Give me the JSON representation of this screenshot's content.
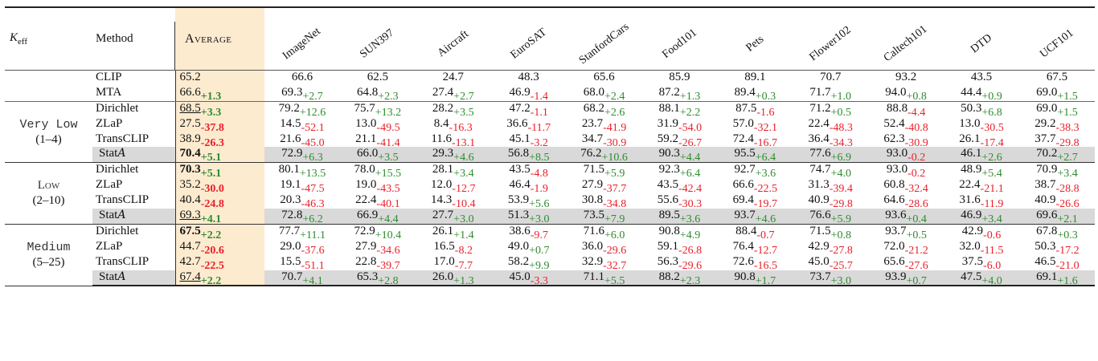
{
  "table": {
    "headers": {
      "k_eff": "K",
      "k_eff_sub": "eff",
      "method": "Method",
      "average": "Average",
      "datasets": [
        "ImageNet",
        "SUN397",
        "Aircraft",
        "EuroSAT",
        "StanfordCars",
        "Food101",
        "Pets",
        "Flower102",
        "Caltech101",
        "DTD",
        "UCF101"
      ]
    },
    "colors": {
      "average_column_bg": "#fdebd0",
      "stat_row_bg": "#d9d9d9",
      "positive_delta": "#2e8b2e",
      "negative_delta": "#e8202a"
    },
    "baseline_rows": [
      {
        "method": "CLIP",
        "average": {
          "v": "65.2",
          "d": ""
        },
        "cells": [
          {
            "v": "66.6",
            "d": ""
          },
          {
            "v": "62.5",
            "d": ""
          },
          {
            "v": "24.7",
            "d": ""
          },
          {
            "v": "48.3",
            "d": ""
          },
          {
            "v": "65.6",
            "d": ""
          },
          {
            "v": "85.9",
            "d": ""
          },
          {
            "v": "89.1",
            "d": ""
          },
          {
            "v": "70.7",
            "d": ""
          },
          {
            "v": "93.2",
            "d": ""
          },
          {
            "v": "43.5",
            "d": ""
          },
          {
            "v": "67.5",
            "d": ""
          }
        ]
      },
      {
        "method": "MTA",
        "average": {
          "v": "66.6",
          "d": "+1.3"
        },
        "cells": [
          {
            "v": "69.3",
            "d": "+2.7"
          },
          {
            "v": "64.8",
            "d": "+2.3"
          },
          {
            "v": "27.4",
            "d": "+2.7"
          },
          {
            "v": "46.9",
            "d": "-1.4"
          },
          {
            "v": "68.0",
            "d": "+2.4"
          },
          {
            "v": "87.2",
            "d": "+1.3"
          },
          {
            "v": "89.4",
            "d": "+0.3"
          },
          {
            "v": "71.7",
            "d": "+1.0"
          },
          {
            "v": "94.0",
            "d": "+0.8"
          },
          {
            "v": "44.4",
            "d": "+0.9"
          },
          {
            "v": "69.0",
            "d": "+1.5"
          }
        ]
      }
    ],
    "groups": [
      {
        "label": "Very Low",
        "range": "(1–4)",
        "label_style": "normal",
        "rows": [
          {
            "method": "Dirichlet",
            "average": {
              "v": "68.5",
              "d": "+3.3",
              "style": "underline"
            },
            "cells": [
              {
                "v": "79.2",
                "d": "+12.6"
              },
              {
                "v": "75.7",
                "d": "+13.2"
              },
              {
                "v": "28.2",
                "d": "+3.5"
              },
              {
                "v": "47.2",
                "d": "-1.1"
              },
              {
                "v": "68.2",
                "d": "+2.6"
              },
              {
                "v": "88.1",
                "d": "+2.2"
              },
              {
                "v": "87.5",
                "d": "-1.6"
              },
              {
                "v": "71.2",
                "d": "+0.5"
              },
              {
                "v": "88.8",
                "d": "-4.4"
              },
              {
                "v": "50.3",
                "d": "+6.8"
              },
              {
                "v": "69.0",
                "d": "+1.5"
              }
            ]
          },
          {
            "method": "ZLaP",
            "average": {
              "v": "27.5",
              "d": "-37.8"
            },
            "cells": [
              {
                "v": "14.5",
                "d": "-52.1"
              },
              {
                "v": "13.0",
                "d": "-49.5"
              },
              {
                "v": "8.4",
                "d": "-16.3"
              },
              {
                "v": "36.6",
                "d": "-11.7"
              },
              {
                "v": "23.7",
                "d": "-41.9"
              },
              {
                "v": "31.9",
                "d": "-54.0"
              },
              {
                "v": "57.0",
                "d": "-32.1"
              },
              {
                "v": "22.4",
                "d": "-48.3"
              },
              {
                "v": "52.4",
                "d": "-40.8"
              },
              {
                "v": "13.0",
                "d": "-30.5"
              },
              {
                "v": "29.2",
                "d": "-38.3"
              }
            ]
          },
          {
            "method": "TransCLIP",
            "average": {
              "v": "38.9",
              "d": "-26.3"
            },
            "cells": [
              {
                "v": "21.6",
                "d": "-45.0"
              },
              {
                "v": "21.1",
                "d": "-41.4"
              },
              {
                "v": "11.6",
                "d": "-13.1"
              },
              {
                "v": "45.1",
                "d": "-3.2"
              },
              {
                "v": "34.7",
                "d": "-30.9"
              },
              {
                "v": "59.2",
                "d": "-26.7"
              },
              {
                "v": "72.4",
                "d": "-16.7"
              },
              {
                "v": "36.4",
                "d": "-34.3"
              },
              {
                "v": "62.3",
                "d": "-30.9"
              },
              {
                "v": "26.1",
                "d": "-17.4"
              },
              {
                "v": "37.7",
                "d": "-29.8"
              }
            ]
          },
          {
            "method": "Stat",
            "method_suffix": "A",
            "highlight": true,
            "average": {
              "v": "70.4",
              "d": "+5.1",
              "style": "bold"
            },
            "cells": [
              {
                "v": "72.9",
                "d": "+6.3"
              },
              {
                "v": "66.0",
                "d": "+3.5"
              },
              {
                "v": "29.3",
                "d": "+4.6"
              },
              {
                "v": "56.8",
                "d": "+8.5"
              },
              {
                "v": "76.2",
                "d": "+10.6"
              },
              {
                "v": "90.3",
                "d": "+4.4"
              },
              {
                "v": "95.5",
                "d": "+6.4"
              },
              {
                "v": "77.6",
                "d": "+6.9"
              },
              {
                "v": "93.0",
                "d": "-0.2"
              },
              {
                "v": "46.1",
                "d": "+2.6"
              },
              {
                "v": "70.2",
                "d": "+2.7"
              }
            ]
          }
        ]
      },
      {
        "label": "Low",
        "range": "(2–10)",
        "label_style": "smallcaps",
        "rows": [
          {
            "method": "Dirichlet",
            "average": {
              "v": "70.3",
              "d": "+5.1",
              "style": "bold"
            },
            "cells": [
              {
                "v": "80.1",
                "d": "+13.5"
              },
              {
                "v": "78.0",
                "d": "+15.5"
              },
              {
                "v": "28.1",
                "d": "+3.4"
              },
              {
                "v": "43.5",
                "d": "-4.8"
              },
              {
                "v": "71.5",
                "d": "+5.9"
              },
              {
                "v": "92.3",
                "d": "+6.4"
              },
              {
                "v": "92.7",
                "d": "+3.6"
              },
              {
                "v": "74.7",
                "d": "+4.0"
              },
              {
                "v": "93.0",
                "d": "-0.2"
              },
              {
                "v": "48.9",
                "d": "+5.4"
              },
              {
                "v": "70.9",
                "d": "+3.4"
              }
            ]
          },
          {
            "method": "ZLaP",
            "average": {
              "v": "35.2",
              "d": "-30.0"
            },
            "cells": [
              {
                "v": "19.1",
                "d": "-47.5"
              },
              {
                "v": "19.0",
                "d": "-43.5"
              },
              {
                "v": "12.0",
                "d": "-12.7"
              },
              {
                "v": "46.4",
                "d": "-1.9"
              },
              {
                "v": "27.9",
                "d": "-37.7"
              },
              {
                "v": "43.5",
                "d": "-42.4"
              },
              {
                "v": "66.6",
                "d": "-22.5"
              },
              {
                "v": "31.3",
                "d": "-39.4"
              },
              {
                "v": "60.8",
                "d": "-32.4"
              },
              {
                "v": "22.4",
                "d": "-21.1"
              },
              {
                "v": "38.7",
                "d": "-28.8"
              }
            ]
          },
          {
            "method": "TransCLIP",
            "average": {
              "v": "40.4",
              "d": "-24.8"
            },
            "cells": [
              {
                "v": "20.3",
                "d": "-46.3"
              },
              {
                "v": "22.4",
                "d": "-40.1"
              },
              {
                "v": "14.3",
                "d": "-10.4"
              },
              {
                "v": "53.9",
                "d": "+5.6"
              },
              {
                "v": "30.8",
                "d": "-34.8"
              },
              {
                "v": "55.6",
                "d": "-30.3"
              },
              {
                "v": "69.4",
                "d": "-19.7"
              },
              {
                "v": "40.9",
                "d": "-29.8"
              },
              {
                "v": "64.6",
                "d": "-28.6"
              },
              {
                "v": "31.6",
                "d": "-11.9"
              },
              {
                "v": "40.9",
                "d": "-26.6"
              }
            ]
          },
          {
            "method": "Stat",
            "method_suffix": "A",
            "highlight": true,
            "average": {
              "v": "69.3",
              "d": "+4.1",
              "style": "underline"
            },
            "cells": [
              {
                "v": "72.8",
                "d": "+6.2"
              },
              {
                "v": "66.9",
                "d": "+4.4"
              },
              {
                "v": "27.7",
                "d": "+3.0"
              },
              {
                "v": "51.3",
                "d": "+3.0"
              },
              {
                "v": "73.5",
                "d": "+7.9"
              },
              {
                "v": "89.5",
                "d": "+3.6"
              },
              {
                "v": "93.7",
                "d": "+4.6"
              },
              {
                "v": "76.6",
                "d": "+5.9"
              },
              {
                "v": "93.6",
                "d": "+0.4"
              },
              {
                "v": "46.9",
                "d": "+3.4"
              },
              {
                "v": "69.6",
                "d": "+2.1"
              }
            ]
          }
        ]
      },
      {
        "label": "Medium",
        "range": "(5–25)",
        "label_style": "normal",
        "rows": [
          {
            "method": "Dirichlet",
            "average": {
              "v": "67.5",
              "d": "+2.2",
              "style": "bold"
            },
            "cells": [
              {
                "v": "77.7",
                "d": "+11.1"
              },
              {
                "v": "72.9",
                "d": "+10.4"
              },
              {
                "v": "26.1",
                "d": "+1.4"
              },
              {
                "v": "38.6",
                "d": "-9.7"
              },
              {
                "v": "71.6",
                "d": "+6.0"
              },
              {
                "v": "90.8",
                "d": "+4.9"
              },
              {
                "v": "88.4",
                "d": "-0.7"
              },
              {
                "v": "71.5",
                "d": "+0.8"
              },
              {
                "v": "93.7",
                "d": "+0.5"
              },
              {
                "v": "42.9",
                "d": "-0.6"
              },
              {
                "v": "67.8",
                "d": "+0.3"
              }
            ]
          },
          {
            "method": "ZLaP",
            "average": {
              "v": "44.7",
              "d": "-20.6"
            },
            "cells": [
              {
                "v": "29.0",
                "d": "-37.6"
              },
              {
                "v": "27.9",
                "d": "-34.6"
              },
              {
                "v": "16.5",
                "d": "-8.2"
              },
              {
                "v": "49.0",
                "d": "+0.7"
              },
              {
                "v": "36.0",
                "d": "-29.6"
              },
              {
                "v": "59.1",
                "d": "-26.8"
              },
              {
                "v": "76.4",
                "d": "-12.7"
              },
              {
                "v": "42.9",
                "d": "-27.8"
              },
              {
                "v": "72.0",
                "d": "-21.2"
              },
              {
                "v": "32.0",
                "d": "-11.5"
              },
              {
                "v": "50.3",
                "d": "-17.2"
              }
            ]
          },
          {
            "method": "TransCLIP",
            "average": {
              "v": "42.7",
              "d": "-22.5"
            },
            "cells": [
              {
                "v": "15.5",
                "d": "-51.1"
              },
              {
                "v": "22.8",
                "d": "-39.7"
              },
              {
                "v": "17.0",
                "d": "-7.7"
              },
              {
                "v": "58.2",
                "d": "+9.9"
              },
              {
                "v": "32.9",
                "d": "-32.7"
              },
              {
                "v": "56.3",
                "d": "-29.6"
              },
              {
                "v": "72.6",
                "d": "-16.5"
              },
              {
                "v": "45.0",
                "d": "-25.7"
              },
              {
                "v": "65.6",
                "d": "-27.6"
              },
              {
                "v": "37.5",
                "d": "-6.0"
              },
              {
                "v": "46.5",
                "d": "-21.0"
              }
            ]
          },
          {
            "method": "Stat",
            "method_suffix": "A",
            "highlight": true,
            "average": {
              "v": "67.4",
              "d": "+2.2",
              "style": "underline"
            },
            "cells": [
              {
                "v": "70.7",
                "d": "+4.1"
              },
              {
                "v": "65.3",
                "d": "+2.8"
              },
              {
                "v": "26.0",
                "d": "+1.3"
              },
              {
                "v": "45.0",
                "d": "-3.3"
              },
              {
                "v": "71.1",
                "d": "+5.5"
              },
              {
                "v": "88.2",
                "d": "+2.3"
              },
              {
                "v": "90.8",
                "d": "+1.7"
              },
              {
                "v": "73.7",
                "d": "+3.0"
              },
              {
                "v": "93.9",
                "d": "+0.7"
              },
              {
                "v": "47.5",
                "d": "+4.0"
              },
              {
                "v": "69.1",
                "d": "+1.6"
              }
            ]
          }
        ]
      }
    ]
  }
}
